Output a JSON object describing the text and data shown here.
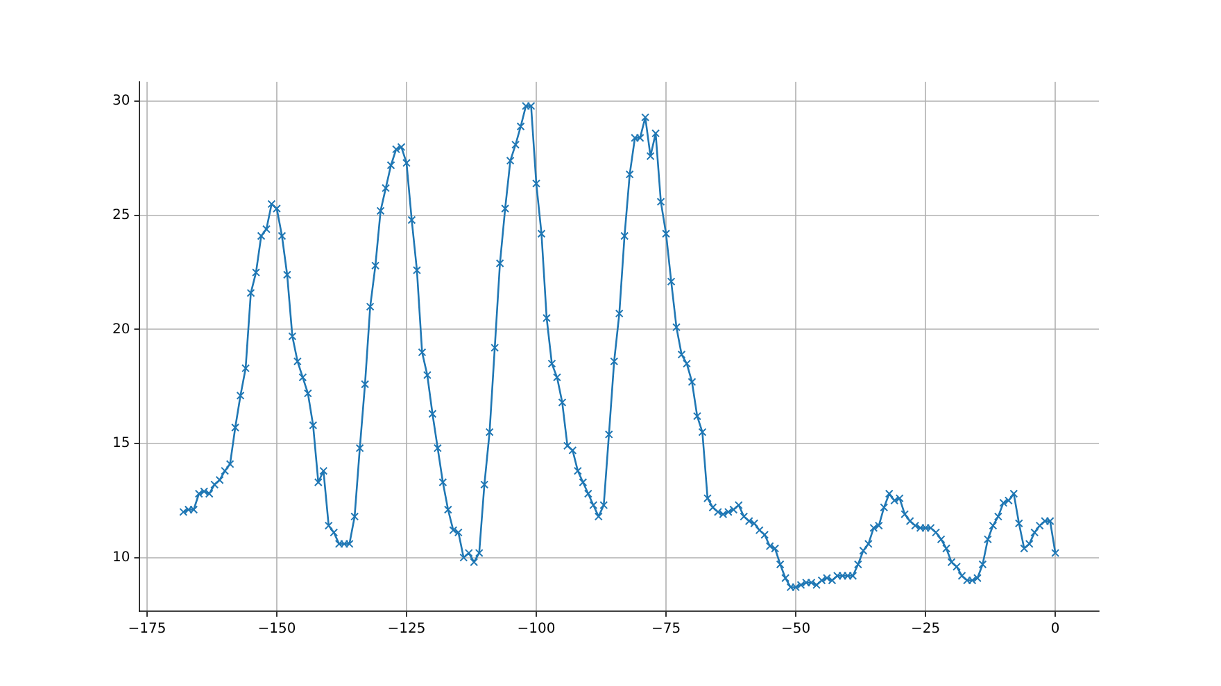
{
  "chart_data": {
    "type": "line",
    "x": [
      -168,
      -167,
      -166,
      -165,
      -164,
      -163,
      -162,
      -161,
      -160,
      -159,
      -158,
      -157,
      -156,
      -155,
      -154,
      -153,
      -152,
      -151,
      -150,
      -149,
      -148,
      -147,
      -146,
      -145,
      -144,
      -143,
      -142,
      -141,
      -140,
      -139,
      -138,
      -137,
      -136,
      -135,
      -134,
      -133,
      -132,
      -131,
      -130,
      -129,
      -128,
      -127,
      -126,
      -125,
      -124,
      -123,
      -122,
      -121,
      -120,
      -119,
      -118,
      -117,
      -116,
      -115,
      -114,
      -113,
      -112,
      -111,
      -110,
      -109,
      -108,
      -107,
      -106,
      -105,
      -104,
      -103,
      -102,
      -101,
      -100,
      -99,
      -98,
      -97,
      -96,
      -95,
      -94,
      -93,
      -92,
      -91,
      -90,
      -89,
      -88,
      -87,
      -86,
      -85,
      -84,
      -83,
      -82,
      -81,
      -80,
      -79,
      -78,
      -77,
      -76,
      -75,
      -74,
      -73,
      -72,
      -71,
      -70,
      -69,
      -68,
      -67,
      -66,
      -65,
      -64,
      -63,
      -62,
      -61,
      -60,
      -59,
      -58,
      -57,
      -56,
      -55,
      -54,
      -53,
      -52,
      -51,
      -50,
      -49,
      -48,
      -47,
      -46,
      -45,
      -44,
      -43,
      -42,
      -41,
      -40,
      -39,
      -38,
      -37,
      -36,
      -35,
      -34,
      -33,
      -32,
      -31,
      -30,
      -29,
      -28,
      -27,
      -26,
      -25,
      -24,
      -23,
      -22,
      -21,
      -20,
      -19,
      -18,
      -17,
      -16,
      -15,
      -14,
      -13,
      -12,
      -11,
      -10,
      -9,
      -8,
      -7,
      -6,
      -5,
      -4,
      -3,
      -2,
      -1,
      0
    ],
    "series": [
      {
        "color": "#1f77b4",
        "values": [
          12.0,
          12.1,
          12.1,
          12.8,
          12.9,
          12.8,
          13.2,
          13.4,
          13.8,
          14.1,
          15.7,
          17.1,
          18.3,
          21.6,
          22.5,
          24.1,
          24.4,
          25.5,
          25.3,
          24.1,
          22.4,
          19.7,
          18.6,
          17.9,
          17.2,
          15.8,
          13.3,
          13.8,
          11.4,
          11.1,
          10.6,
          10.6,
          10.6,
          11.8,
          14.8,
          17.6,
          21.0,
          22.8,
          25.2,
          26.2,
          27.2,
          27.9,
          28.0,
          27.3,
          24.8,
          22.6,
          19.0,
          18.0,
          16.3,
          14.8,
          13.3,
          12.1,
          11.2,
          11.1,
          10.0,
          10.2,
          9.8,
          10.2,
          13.2,
          15.5,
          19.2,
          22.9,
          25.3,
          27.4,
          28.1,
          28.9,
          29.8,
          29.8,
          26.4,
          24.2,
          20.5,
          18.5,
          17.9,
          16.8,
          14.9,
          14.7,
          13.8,
          13.3,
          12.8,
          12.3,
          11.8,
          12.3,
          15.4,
          18.6,
          20.7,
          24.1,
          26.8,
          28.4,
          28.4,
          29.3,
          27.6,
          28.6,
          25.6,
          24.2,
          22.1,
          20.1,
          18.9,
          18.5,
          17.7,
          16.2,
          15.5,
          12.6,
          12.2,
          12.0,
          11.9,
          12.0,
          12.1,
          12.3,
          11.8,
          11.6,
          11.5,
          11.2,
          11.0,
          10.5,
          10.4,
          9.7,
          9.1,
          8.7,
          8.7,
          8.8,
          8.9,
          8.9,
          8.8,
          9.0,
          9.1,
          9.0,
          9.2,
          9.2,
          9.2,
          9.2,
          9.7,
          10.3,
          10.6,
          11.3,
          11.4,
          12.2,
          12.8,
          12.5,
          12.6,
          11.9,
          11.6,
          11.4,
          11.3,
          11.3,
          11.3,
          11.1,
          10.8,
          10.4,
          9.8,
          9.6,
          9.2,
          9.0,
          9.0,
          9.1,
          9.7,
          10.8,
          11.4,
          11.8,
          12.4,
          12.5,
          12.8,
          11.5,
          10.4,
          10.6,
          11.1,
          11.4,
          11.6,
          11.6,
          10.2
        ]
      }
    ],
    "xlim": [
      -176.4,
      8.4
    ],
    "ylim": [
      7.65,
      30.86
    ],
    "xticks": [
      {
        "value": -175,
        "label": "−175"
      },
      {
        "value": -150,
        "label": "−150"
      },
      {
        "value": -125,
        "label": "−125"
      },
      {
        "value": -100,
        "label": "−100"
      },
      {
        "value": -75,
        "label": "−75"
      },
      {
        "value": -50,
        "label": "−50"
      },
      {
        "value": -25,
        "label": "−25"
      },
      0
    ],
    "yticks": [
      10,
      15,
      20,
      25,
      30
    ],
    "grid": true,
    "marker": "cross",
    "line_style": "solid"
  }
}
